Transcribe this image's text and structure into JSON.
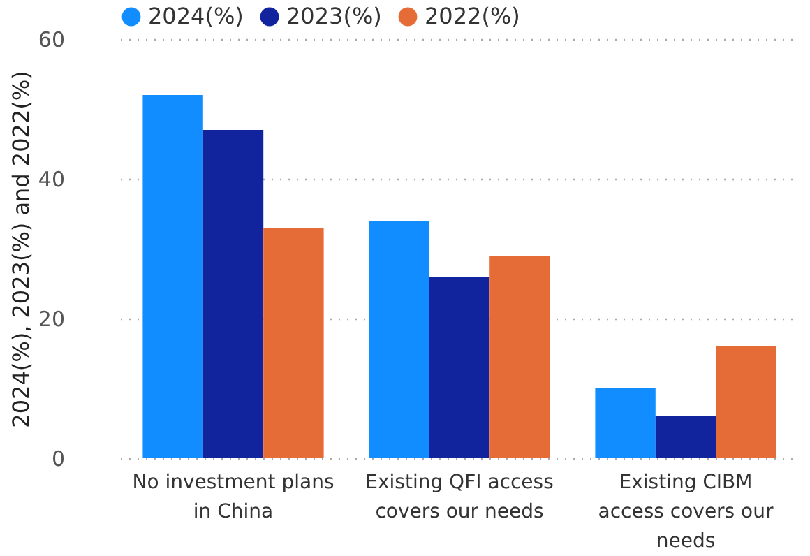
{
  "chart_data": {
    "type": "bar",
    "ylabel": "2024(%), 2023(%) and 2022(%)",
    "categories": [
      "No investment plans in China",
      "Existing QFI access covers our needs",
      "Existing CIBM access covers our needs"
    ],
    "series": [
      {
        "name": "2024(%)",
        "color": "#118dff",
        "values": [
          52,
          34,
          10
        ]
      },
      {
        "name": "2023(%)",
        "color": "#12239e",
        "values": [
          47,
          26,
          6
        ]
      },
      {
        "name": "2022(%)",
        "color": "#e66c37",
        "values": [
          33,
          29,
          16
        ]
      }
    ],
    "ylim": [
      0,
      60
    ],
    "yticks": [
      0,
      20,
      40,
      60
    ],
    "grid": "y",
    "legend": "top left"
  }
}
